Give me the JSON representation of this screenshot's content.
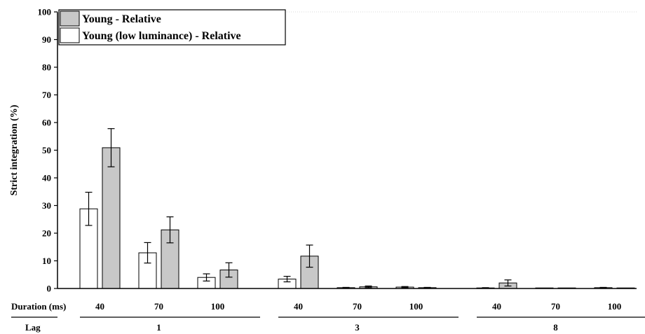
{
  "colors": {
    "young_relative": "#c8c8c8",
    "young_low_luminance_relative": "#ffffff",
    "stroke": "#000000"
  },
  "chart_data": {
    "type": "bar",
    "ylabel": "Strict integration (%)",
    "ylim": [
      0,
      100
    ],
    "yticks": [
      0,
      10,
      20,
      30,
      40,
      50,
      60,
      70,
      80,
      90,
      100
    ],
    "grid": false,
    "legend_position": "top-left",
    "row_labels": {
      "duration": "Duration (ms)",
      "lag": "Lag"
    },
    "groups": [
      {
        "lag": "1",
        "durations": [
          "40",
          "70",
          "100"
        ]
      },
      {
        "lag": "3",
        "durations": [
          "40",
          "70",
          "100"
        ]
      },
      {
        "lag": "8",
        "durations": [
          "40",
          "70",
          "100"
        ]
      }
    ],
    "series": [
      {
        "name": "Young (low luminance) - Relative",
        "values": [
          28.8,
          12.9,
          4.0,
          3.4,
          0.3,
          0.5,
          0.2,
          0.0,
          0.3
        ],
        "errors": [
          6.0,
          3.7,
          1.3,
          1.0,
          0.1,
          0.2,
          0.1,
          0.0,
          0.1
        ]
      },
      {
        "name": "Young - Relative",
        "values": [
          50.9,
          21.2,
          6.7,
          11.7,
          0.6,
          0.3,
          2.0,
          0.0,
          0.0
        ],
        "errors": [
          6.9,
          4.7,
          2.6,
          4.0,
          0.3,
          0.1,
          1.1,
          0.0,
          0.0
        ]
      }
    ]
  }
}
